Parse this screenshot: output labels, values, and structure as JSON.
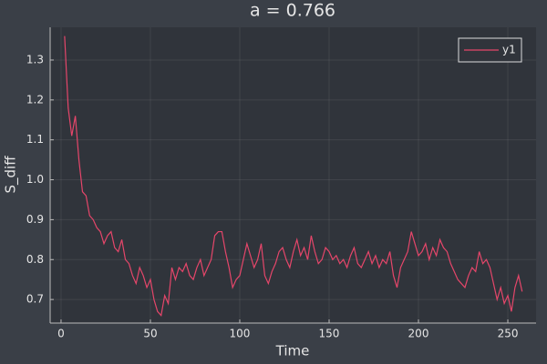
{
  "chart_data": {
    "type": "line",
    "title": "a = 0.766",
    "x_label": "Time",
    "y_label": "S_diff",
    "x": [
      2,
      4,
      6,
      8,
      10,
      12,
      14,
      16,
      18,
      20,
      22,
      24,
      26,
      28,
      30,
      32,
      34,
      36,
      38,
      40,
      42,
      44,
      46,
      48,
      50,
      52,
      54,
      56,
      58,
      60,
      62,
      64,
      66,
      68,
      70,
      72,
      74,
      76,
      78,
      80,
      82,
      84,
      86,
      88,
      90,
      92,
      94,
      96,
      98,
      100,
      102,
      104,
      106,
      108,
      110,
      112,
      114,
      116,
      118,
      120,
      122,
      124,
      126,
      128,
      130,
      132,
      134,
      136,
      138,
      140,
      142,
      144,
      146,
      148,
      150,
      152,
      154,
      156,
      158,
      160,
      162,
      164,
      166,
      168,
      170,
      172,
      174,
      176,
      178,
      180,
      182,
      184,
      186,
      188,
      190,
      192,
      194,
      196,
      198,
      200,
      202,
      204,
      206,
      208,
      210,
      212,
      214,
      216,
      218,
      220,
      222,
      224,
      226,
      228,
      230,
      232,
      234,
      236,
      238,
      240,
      242,
      244,
      246,
      248,
      250,
      252,
      254,
      256,
      258
    ],
    "series": [
      {
        "name": "y1",
        "color": "#e5466a",
        "values": [
          1.36,
          1.18,
          1.11,
          1.16,
          1.05,
          0.97,
          0.96,
          0.91,
          0.9,
          0.88,
          0.87,
          0.84,
          0.86,
          0.87,
          0.83,
          0.82,
          0.85,
          0.8,
          0.79,
          0.76,
          0.74,
          0.78,
          0.76,
          0.73,
          0.75,
          0.7,
          0.67,
          0.66,
          0.71,
          0.69,
          0.78,
          0.75,
          0.78,
          0.77,
          0.79,
          0.76,
          0.75,
          0.78,
          0.8,
          0.76,
          0.78,
          0.8,
          0.86,
          0.87,
          0.87,
          0.82,
          0.78,
          0.73,
          0.75,
          0.76,
          0.8,
          0.84,
          0.81,
          0.78,
          0.8,
          0.84,
          0.76,
          0.74,
          0.77,
          0.79,
          0.82,
          0.83,
          0.8,
          0.78,
          0.82,
          0.85,
          0.81,
          0.83,
          0.8,
          0.86,
          0.82,
          0.79,
          0.8,
          0.83,
          0.82,
          0.8,
          0.81,
          0.79,
          0.8,
          0.78,
          0.81,
          0.83,
          0.79,
          0.78,
          0.8,
          0.82,
          0.79,
          0.81,
          0.78,
          0.8,
          0.79,
          0.82,
          0.76,
          0.73,
          0.78,
          0.8,
          0.82,
          0.87,
          0.84,
          0.81,
          0.82,
          0.84,
          0.8,
          0.83,
          0.81,
          0.85,
          0.83,
          0.82,
          0.79,
          0.77,
          0.75,
          0.74,
          0.73,
          0.76,
          0.78,
          0.77,
          0.82,
          0.79,
          0.8,
          0.78,
          0.74,
          0.7,
          0.73,
          0.69,
          0.71,
          0.67,
          0.73,
          0.76,
          0.72
        ]
      }
    ],
    "xlim": [
      -6.1,
      265.8
    ],
    "ylim": [
      0.641,
      1.382
    ],
    "xticks": [
      0,
      50,
      100,
      150,
      200,
      250
    ],
    "yticks": [
      0.7,
      0.8,
      0.9,
      {
        "value": 1,
        "label": "1.0"
      },
      1.1,
      1.2,
      1.3
    ],
    "grid": true,
    "legend": "top-right"
  }
}
